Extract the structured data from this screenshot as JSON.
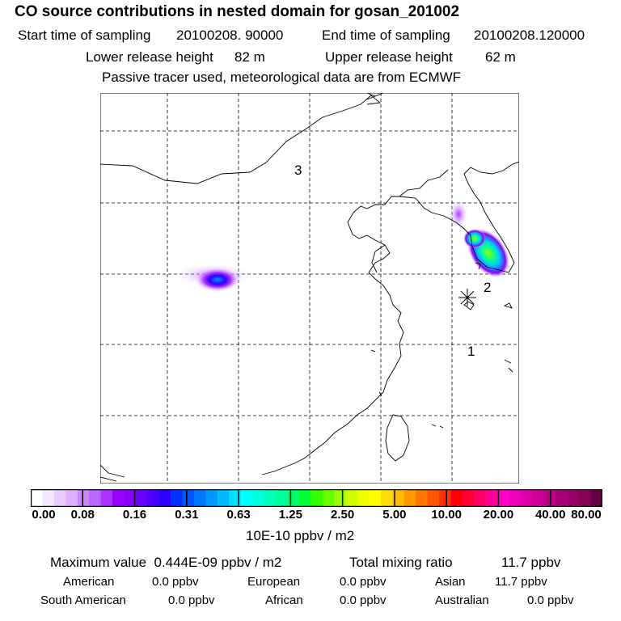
{
  "header": {
    "title": "CO  source contributions in nested domain for gosan_201002",
    "start_label": "Start time of sampling",
    "start_value": "20100208. 90000",
    "end_label": "End time of sampling",
    "end_value": "20100208.120000",
    "lower_label": "Lower release height",
    "lower_value": "82 m",
    "upper_label": "Upper release height",
    "upper_value": "62 m",
    "note": "Passive tracer used, meteorological data are from ECMWF"
  },
  "map": {
    "region_labels": [
      "3",
      "2",
      "1"
    ],
    "grid_style": "dashed"
  },
  "colorbar": {
    "tick_labels": [
      "0.00",
      "0.08",
      "0.16",
      "0.31",
      "0.63",
      "1.25",
      "2.50",
      "5.00",
      "10.00",
      "20.00",
      "40.00",
      "80.00"
    ],
    "colors": [
      "#ffffff",
      "#f5e6ff",
      "#ebccff",
      "#dfb0ff",
      "#cc88ff",
      "#bb66ff",
      "#aa33ff",
      "#9a00ff",
      "#8800ff",
      "#6a00ff",
      "#4a00ff",
      "#2c00ff",
      "#0033ff",
      "#0055ff",
      "#0077ff",
      "#0099ff",
      "#00bbff",
      "#00ddff",
      "#00ffff",
      "#00ffdd",
      "#00ffbb",
      "#00ff99",
      "#00ff66",
      "#00ff33",
      "#33ff00",
      "#66ff00",
      "#99ff00",
      "#ccff00",
      "#eeff00",
      "#ffff00",
      "#ffdd00",
      "#ffbb00",
      "#ff9900",
      "#ff7700",
      "#ff5500",
      "#ff3300",
      "#ff0000",
      "#ff0033",
      "#ff0066",
      "#ff0099",
      "#ff00cc",
      "#ee00bb",
      "#dd00aa",
      "#cc0099",
      "#bb0088",
      "#aa0077",
      "#990066",
      "#880055",
      "#660044"
    ],
    "units": "10E-10 ppbv / m2"
  },
  "summary": {
    "max_label": "Maximum value",
    "max_value": "0.444E-09 ppbv / m2",
    "total_label": "Total mixing ratio",
    "total_value": "11.7 ppbv",
    "regions": [
      {
        "name": "American",
        "value": "0.0 ppbv"
      },
      {
        "name": "European",
        "value": "0.0 ppbv"
      },
      {
        "name": "Asian",
        "value": "11.7 ppbv"
      },
      {
        "name": "South American",
        "value": "0.0 ppbv"
      },
      {
        "name": "African",
        "value": "0.0 ppbv"
      },
      {
        "name": "Australian",
        "value": "0.0 ppbv"
      }
    ]
  }
}
